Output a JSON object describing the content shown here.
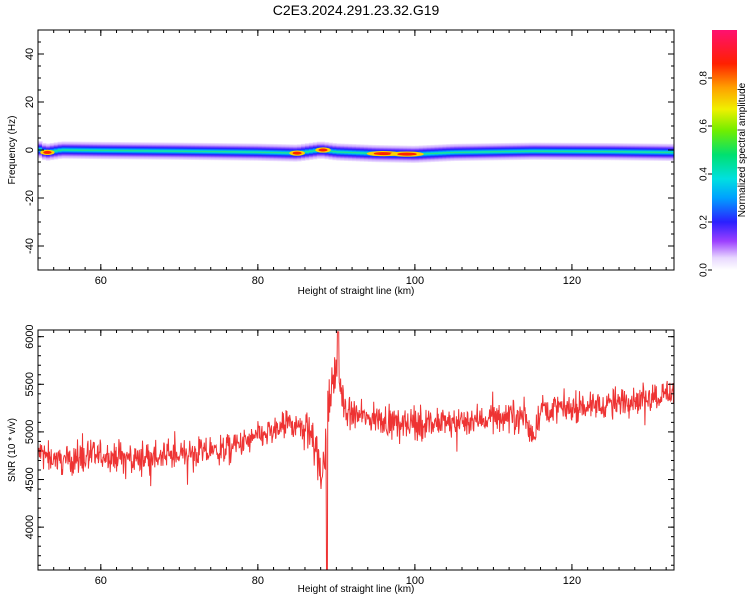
{
  "title": "C2E3.2024.291.23.32.G19",
  "chart_data": [
    {
      "type": "heatmap",
      "xlabel": "Height of straight line (km)",
      "ylabel": "Frequency (Hz)",
      "xlim": [
        52,
        133
      ],
      "ylim": [
        -50,
        50
      ],
      "xticks": [
        60,
        80,
        100,
        120
      ],
      "yticks": [
        -40,
        -20,
        0,
        20,
        40
      ],
      "tick_labels_x": [
        "60",
        "80",
        "100",
        "120"
      ],
      "tick_labels_y": [
        "-40",
        "-20",
        "0",
        "20",
        "40"
      ],
      "colorbar": {
        "label": "Normalized spectral amplitude",
        "range": [
          0,
          1
        ],
        "ticks": [
          0.0,
          0.2,
          0.4,
          0.6,
          0.8
        ],
        "tick_labels": [
          "0.0",
          "0.2",
          "0.4",
          "0.6",
          "0.8"
        ]
      },
      "band_center_hz": [
        [
          52,
          0.5
        ],
        [
          53,
          -1.0
        ],
        [
          55,
          0.0
        ],
        [
          60,
          -0.2
        ],
        [
          70,
          -0.5
        ],
        [
          80,
          -0.9
        ],
        [
          85,
          -1.3
        ],
        [
          88,
          0.0
        ],
        [
          90,
          -0.8
        ],
        [
          95,
          -1.5
        ],
        [
          100,
          -1.8
        ],
        [
          105,
          -1.0
        ],
        [
          115,
          -0.5
        ],
        [
          125,
          -0.7
        ],
        [
          133,
          -1.0
        ]
      ]
    },
    {
      "type": "line",
      "xlabel": "Height of straight line (km)",
      "ylabel": "SNR (10 * v/v)",
      "xlim": [
        52,
        133
      ],
      "ylim": [
        3550,
        6070
      ],
      "xticks": [
        60,
        80,
        100,
        120
      ],
      "yticks": [
        4000,
        4500,
        5000,
        5500,
        6000
      ],
      "tick_labels_x": [
        "60",
        "80",
        "100",
        "120"
      ],
      "tick_labels_y": [
        "4000",
        "4500",
        "5000",
        "5500",
        "6000"
      ],
      "color": "#ee3333",
      "series": [
        {
          "x": [
            52,
            55,
            60,
            65,
            70,
            75,
            78,
            80,
            82,
            84,
            86,
            87,
            88,
            89,
            90,
            91,
            92,
            95,
            100,
            105,
            110,
            114,
            115,
            116,
            120,
            125,
            130,
            133
          ],
          "y": [
            4780,
            4700,
            4750,
            4720,
            4760,
            4800,
            4870,
            4950,
            5000,
            5080,
            5020,
            5050,
            4450,
            5250,
            5700,
            5250,
            5180,
            5130,
            5080,
            5100,
            5150,
            5180,
            4900,
            5250,
            5250,
            5300,
            5370,
            5420
          ]
        }
      ]
    }
  ]
}
